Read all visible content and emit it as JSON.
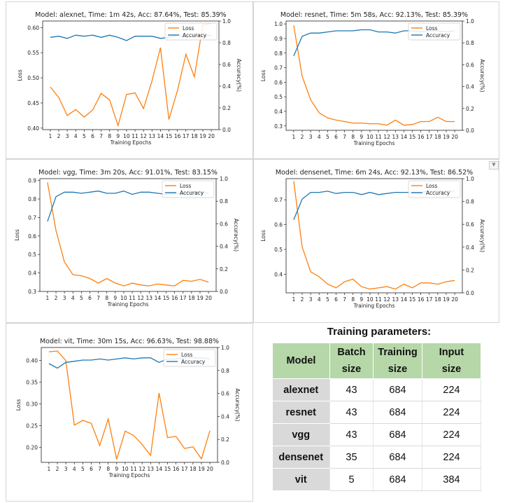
{
  "chart_data": [
    {
      "type": "line",
      "title": "Model: alexnet, Time: 1m 42s, Acc: 87.64%, Test: 85.39%",
      "xlabel": "Training Epochs",
      "ylabel": "Loss",
      "y2label": "Accuracy(%)",
      "x": [
        1,
        2,
        3,
        4,
        5,
        6,
        7,
        8,
        9,
        10,
        11,
        12,
        13,
        14,
        15,
        16,
        17,
        18,
        19,
        20
      ],
      "ylim": [
        0.397,
        0.613
      ],
      "y2lim": [
        0,
        1.0
      ],
      "yticks": [
        0.4,
        0.45,
        0.5,
        0.55,
        0.6
      ],
      "y2ticks": [
        0.0,
        0.2,
        0.4,
        0.6,
        0.8,
        1.0
      ],
      "legend": "top-right",
      "series": [
        {
          "name": "Loss",
          "axis": "left",
          "color": "#ff7f0e",
          "values": [
            0.482,
            0.461,
            0.425,
            0.437,
            0.422,
            0.436,
            0.469,
            0.456,
            0.405,
            0.467,
            0.47,
            0.439,
            0.494,
            0.56,
            0.417,
            0.474,
            0.547,
            0.502,
            0.605,
            0.608
          ]
        },
        {
          "name": "Accuracy",
          "axis": "right",
          "color": "#1f77b4",
          "values": [
            0.85,
            0.86,
            0.84,
            0.87,
            0.86,
            0.87,
            0.85,
            0.87,
            0.85,
            0.82,
            0.86,
            0.86,
            0.86,
            0.84,
            0.85,
            0.87,
            0.85,
            0.87,
            0.86,
            0.87
          ]
        }
      ]
    },
    {
      "type": "line",
      "title": "Model: resnet, Time: 5m 58s, Acc: 92.13%, Test: 85.39%",
      "xlabel": "Training Epochs",
      "ylabel": "Loss",
      "y2label": "Accuracy(%)",
      "x": [
        1,
        2,
        3,
        4,
        5,
        6,
        7,
        8,
        9,
        10,
        11,
        12,
        13,
        14,
        15,
        16,
        17,
        18,
        19,
        20
      ],
      "ylim": [
        0.27,
        1.02
      ],
      "y2lim": [
        0,
        1.0
      ],
      "yticks": [
        0.3,
        0.4,
        0.5,
        0.6,
        0.7,
        0.8,
        0.9,
        1.0
      ],
      "y2ticks": [
        0.0,
        0.2,
        0.4,
        0.6,
        0.8,
        1.0
      ],
      "legend": "top-right",
      "series": [
        {
          "name": "Loss",
          "axis": "left",
          "color": "#ff7f0e",
          "values": [
            0.99,
            0.64,
            0.48,
            0.39,
            0.355,
            0.34,
            0.33,
            0.32,
            0.32,
            0.315,
            0.315,
            0.305,
            0.34,
            0.305,
            0.31,
            0.33,
            0.33,
            0.36,
            0.33,
            0.33
          ]
        },
        {
          "name": "Accuracy",
          "axis": "right",
          "color": "#1f77b4",
          "values": [
            0.68,
            0.86,
            0.89,
            0.89,
            0.9,
            0.91,
            0.91,
            0.91,
            0.92,
            0.92,
            0.9,
            0.9,
            0.89,
            0.91,
            0.91,
            0.9,
            0.91,
            0.91,
            0.9,
            0.91
          ]
        }
      ]
    },
    {
      "type": "line",
      "title": "Model: vgg, Time: 3m 20s, Acc: 91.01%, Test: 83.15%",
      "xlabel": "Training Epochs",
      "ylabel": "Loss",
      "y2label": "Accuracy(%)",
      "x": [
        1,
        2,
        3,
        4,
        5,
        6,
        7,
        8,
        9,
        10,
        11,
        12,
        13,
        14,
        15,
        16,
        17,
        18,
        19,
        20
      ],
      "ylim": [
        0.3,
        0.91
      ],
      "y2lim": [
        0,
        1.0
      ],
      "yticks": [
        0.3,
        0.4,
        0.5,
        0.6,
        0.7,
        0.8,
        0.9
      ],
      "y2ticks": [
        0.0,
        0.2,
        0.4,
        0.6,
        0.8,
        1.0
      ],
      "legend": "top-right",
      "series": [
        {
          "name": "Loss",
          "axis": "left",
          "color": "#ff7f0e",
          "values": [
            0.89,
            0.63,
            0.46,
            0.39,
            0.385,
            0.37,
            0.345,
            0.37,
            0.345,
            0.33,
            0.345,
            0.335,
            0.33,
            0.34,
            0.335,
            0.33,
            0.36,
            0.355,
            0.365,
            0.35
          ]
        },
        {
          "name": "Accuracy",
          "axis": "right",
          "color": "#1f77b4",
          "values": [
            0.62,
            0.84,
            0.88,
            0.88,
            0.87,
            0.88,
            0.89,
            0.87,
            0.87,
            0.89,
            0.86,
            0.88,
            0.88,
            0.87,
            0.86,
            0.87,
            0.87,
            0.88,
            0.88,
            0.87
          ]
        }
      ]
    },
    {
      "type": "line",
      "title": "Model: densenet, Time: 6m 24s, Acc: 92.13%, Test: 86.52%",
      "xlabel": "Training Epochs",
      "ylabel": "Loss",
      "y2label": "Accuracy(%)",
      "x": [
        1,
        2,
        3,
        4,
        5,
        6,
        7,
        8,
        9,
        10,
        11,
        12,
        13,
        14,
        15,
        16,
        17,
        18,
        19,
        20
      ],
      "ylim": [
        0.325,
        0.785
      ],
      "y2lim": [
        0,
        1.0
      ],
      "yticks": [
        0.4,
        0.5,
        0.6,
        0.7
      ],
      "y2ticks": [
        0.0,
        0.2,
        0.4,
        0.6,
        0.8,
        1.0
      ],
      "legend": "top-right",
      "series": [
        {
          "name": "Loss",
          "axis": "left",
          "color": "#ff7f0e",
          "values": [
            0.775,
            0.51,
            0.41,
            0.39,
            0.36,
            0.345,
            0.37,
            0.38,
            0.35,
            0.34,
            0.345,
            0.35,
            0.34,
            0.36,
            0.345,
            0.365,
            0.365,
            0.36,
            0.37,
            0.375
          ]
        },
        {
          "name": "Accuracy",
          "axis": "right",
          "color": "#1f77b4",
          "values": [
            0.64,
            0.82,
            0.88,
            0.88,
            0.89,
            0.87,
            0.88,
            0.88,
            0.86,
            0.88,
            0.86,
            0.87,
            0.88,
            0.88,
            0.88,
            0.88,
            0.89,
            0.89,
            0.89,
            0.89
          ]
        }
      ]
    },
    {
      "type": "line",
      "title": "Model: vit, Time: 30m 15s, Acc: 96.63%, Test: 98.88%",
      "xlabel": "Training Epochs",
      "ylabel": "Loss",
      "y2label": "Accuracy(%)",
      "x": [
        1,
        2,
        3,
        4,
        5,
        6,
        7,
        8,
        9,
        10,
        11,
        12,
        13,
        14,
        15,
        16,
        17,
        18,
        19,
        20
      ],
      "ylim": [
        0.165,
        0.43
      ],
      "y2lim": [
        0,
        1.0
      ],
      "yticks": [
        0.2,
        0.25,
        0.3,
        0.35,
        0.4
      ],
      "y2ticks": [
        0.0,
        0.2,
        0.4,
        0.6,
        0.8,
        1.0
      ],
      "legend": "top-right",
      "series": [
        {
          "name": "Loss",
          "axis": "left",
          "color": "#ff7f0e",
          "values": [
            0.42,
            0.422,
            0.4,
            0.251,
            0.262,
            0.255,
            0.204,
            0.265,
            0.172,
            0.237,
            0.227,
            0.206,
            0.181,
            0.325,
            0.222,
            0.225,
            0.197,
            0.201,
            0.173,
            0.238
          ]
        },
        {
          "name": "Accuracy",
          "axis": "right",
          "color": "#1f77b4",
          "values": [
            0.86,
            0.82,
            0.87,
            0.88,
            0.89,
            0.89,
            0.9,
            0.89,
            0.9,
            0.91,
            0.9,
            0.91,
            0.91,
            0.87,
            0.9,
            0.9,
            0.91,
            0.91,
            0.91,
            0.9
          ]
        }
      ]
    }
  ],
  "params": {
    "title": "Training parameters:",
    "headers": [
      [
        "Model"
      ],
      [
        "Batch",
        "size"
      ],
      [
        "Training",
        "size"
      ],
      [
        "Input",
        "size"
      ]
    ],
    "rows": [
      [
        "alexnet",
        "43",
        "684",
        "224"
      ],
      [
        "resnet",
        "43",
        "684",
        "224"
      ],
      [
        "vgg",
        "43",
        "684",
        "224"
      ],
      [
        "densenet",
        "35",
        "684",
        "224"
      ],
      [
        "vit",
        "5",
        "684",
        "384"
      ]
    ]
  },
  "colors": {
    "loss": "#ff7f0e",
    "accuracy": "#1f77b4",
    "header_bg": "#b6d7a8",
    "model_bg": "#d9d9d9"
  },
  "icons": {
    "scroll": "triangle-down-icon"
  }
}
